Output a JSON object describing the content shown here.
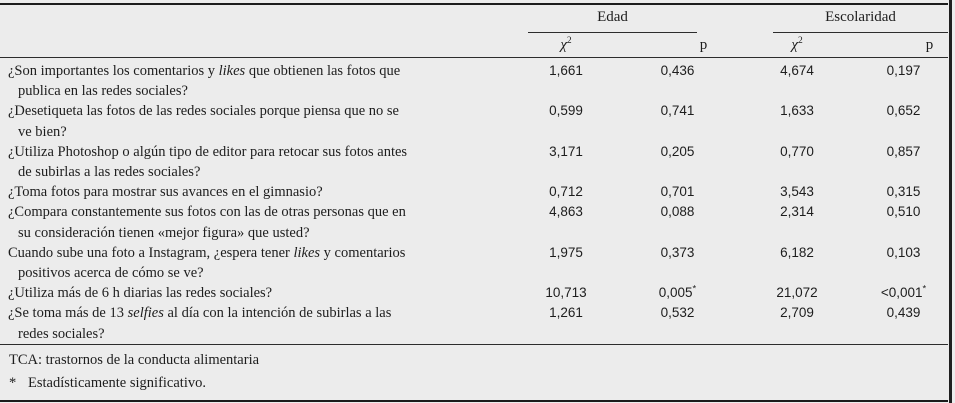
{
  "page": {
    "background_color": "#ececec",
    "rule_color": "#1c1c1c",
    "text_color": "#1d1d1d"
  },
  "table": {
    "spanners": {
      "edad": "Edad",
      "escolaridad": "Escolaridad"
    },
    "subheader": {
      "chi2": [
        {
          "t": "χ",
          "i": true
        },
        {
          "t": "2",
          "sup": true
        }
      ],
      "p": "p"
    },
    "rows": [
      {
        "question": [
          {
            "t": "¿Son importantes los comentarios y "
          },
          {
            "t": "likes",
            "i": true
          },
          {
            "t": " que obtienen las fotos que"
          },
          {
            "br": true
          },
          {
            "t": "publica en las redes sociales?"
          }
        ],
        "edad_chi2": "1,661",
        "edad_p": "0,436",
        "esc_chi2": "4,674",
        "esc_p": "0,197"
      },
      {
        "question": [
          {
            "t": "¿Desetiqueta las fotos de las redes sociales porque piensa que no se"
          },
          {
            "br": true
          },
          {
            "t": "ve bien?"
          }
        ],
        "edad_chi2": "0,599",
        "edad_p": "0,741",
        "esc_chi2": "1,633",
        "esc_p": "0,652"
      },
      {
        "question": [
          {
            "t": "¿Utiliza Photoshop o algún tipo de editor para retocar sus fotos antes"
          },
          {
            "br": true
          },
          {
            "t": "de subirlas a las redes sociales?"
          }
        ],
        "edad_chi2": "3,171",
        "edad_p": "0,205",
        "esc_chi2": "0,770",
        "esc_p": "0,857"
      },
      {
        "question": [
          {
            "t": "¿Toma fotos para mostrar sus avances en el gimnasio?"
          }
        ],
        "edad_chi2": "0,712",
        "edad_p": "0,701",
        "esc_chi2": "3,543",
        "esc_p": "0,315"
      },
      {
        "question": [
          {
            "t": "¿Compara constantemente sus fotos con las de otras personas que en"
          },
          {
            "br": true
          },
          {
            "t": "su consideración tienen «mejor figura» que usted?"
          }
        ],
        "edad_chi2": "4,863",
        "edad_p": "0,088",
        "esc_chi2": "2,314",
        "esc_p": "0,510"
      },
      {
        "question": [
          {
            "t": "Cuando sube una foto a Instagram, ¿espera tener "
          },
          {
            "t": "likes",
            "i": true
          },
          {
            "t": " y comentarios"
          },
          {
            "br": true
          },
          {
            "t": "positivos acerca de cómo se ve?"
          }
        ],
        "edad_chi2": "1,975",
        "edad_p": "0,373",
        "esc_chi2": "6,182",
        "esc_p": "0,103"
      },
      {
        "question": [
          {
            "t": "¿Utiliza más de 6 h diarias las redes sociales?"
          }
        ],
        "edad_chi2": "10,713",
        "edad_p": [
          {
            "t": "0,005"
          },
          {
            "t": "*",
            "sup": true
          }
        ],
        "esc_chi2": "21,072",
        "esc_p": [
          {
            "t": "<0,001"
          },
          {
            "t": "*",
            "sup": true
          }
        ]
      },
      {
        "question": [
          {
            "t": "¿Se toma más de 13 "
          },
          {
            "t": "selfies",
            "i": true
          },
          {
            "t": " al día con la intención de subirlas a las"
          },
          {
            "br": true
          },
          {
            "t": "redes sociales?"
          }
        ],
        "edad_chi2": "1,261",
        "edad_p": "0,532",
        "esc_chi2": "2,709",
        "esc_p": "0,439"
      }
    ],
    "footnotes": {
      "line1": "TCA: trastornos de la conducta alimentaria",
      "line2_marker": "*",
      "line2_text": "Estadísticamente significativo."
    }
  }
}
